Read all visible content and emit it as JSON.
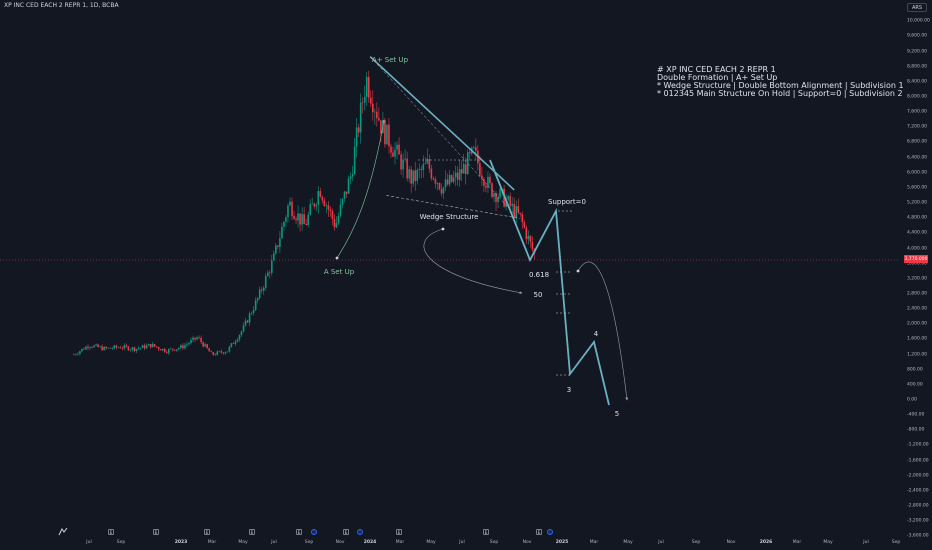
{
  "header": {
    "symbol_title": "XP INC CED EACH 2 REPR 1, 1D, BCBA",
    "currency": "ARS"
  },
  "price_axis": {
    "labels": [
      "10,000.00",
      "9,600.00",
      "9,200.00",
      "8,800.00",
      "8,400.00",
      "8,000.00",
      "7,600.00",
      "7,200.00",
      "6,800.00",
      "6,400.00",
      "6,000.00",
      "5,600.00",
      "5,200.00",
      "4,800.00",
      "4,400.00",
      "4,000.00",
      "3,600.00",
      "3,200.00",
      "2,800.00",
      "2,400.00",
      "2,000.00",
      "1,600.00",
      "1,200.00",
      "800.00",
      "400.00",
      "0.00",
      "-400.00",
      "-800.00",
      "-1,200.00",
      "-1,600.00",
      "-2,000.00",
      "-2,400.00",
      "-2,800.00",
      "-3,200.00",
      "-3,600.00"
    ],
    "current_price": "3,770.000",
    "current_price_color": "#f23645"
  },
  "time_axis": {
    "labels": [
      {
        "text": "Jul",
        "bold": false
      },
      {
        "text": "Sep",
        "bold": false
      },
      {
        "text": "2023",
        "bold": true
      },
      {
        "text": "Mar",
        "bold": false
      },
      {
        "text": "May",
        "bold": false
      },
      {
        "text": "Jul",
        "bold": false
      },
      {
        "text": "Sep",
        "bold": false
      },
      {
        "text": "Nov",
        "bold": false
      },
      {
        "text": "2024",
        "bold": true
      },
      {
        "text": "Mar",
        "bold": false
      },
      {
        "text": "May",
        "bold": false
      },
      {
        "text": "Jul",
        "bold": false
      },
      {
        "text": "Sep",
        "bold": false
      },
      {
        "text": "Nov",
        "bold": false
      },
      {
        "text": "2025",
        "bold": true
      },
      {
        "text": "Mar",
        "bold": false
      },
      {
        "text": "May",
        "bold": false
      },
      {
        "text": "Jul",
        "bold": false
      },
      {
        "text": "Sep",
        "bold": false
      },
      {
        "text": "Nov",
        "bold": false
      },
      {
        "text": "2026",
        "bold": true
      },
      {
        "text": "Mar",
        "bold": false
      },
      {
        "text": "May",
        "bold": false
      },
      {
        "text": "Jul",
        "bold": false
      },
      {
        "text": "Sep",
        "bold": false
      }
    ],
    "events": [
      {
        "type": "earnings",
        "label": "E"
      },
      {
        "type": "earnings",
        "label": "E"
      },
      {
        "type": "earnings",
        "label": "E"
      },
      {
        "type": "earnings",
        "label": "E"
      },
      {
        "type": "earnings",
        "label": "E"
      },
      {
        "type": "dividend",
        "label": "D"
      },
      {
        "type": "earnings",
        "label": "E"
      },
      {
        "type": "dividend",
        "label": "D"
      },
      {
        "type": "earnings",
        "label": "E"
      },
      {
        "type": "earnings",
        "label": "E"
      },
      {
        "type": "earnings",
        "label": "E"
      },
      {
        "type": "dividend",
        "label": "D"
      }
    ]
  },
  "annotations": {
    "note_lines": [
      "# XP INC CED EACH 2 REPR 1",
      "Double Formation | A+ Set Up",
      "* Wedge Structure | Double Bottom Alignment | Subdivision 1",
      "* 012345 Main Structure On Hold | Support=0 | Subdivision 2"
    ],
    "a_plus_setup": "A+ Set Up",
    "a_setup": "A Set Up",
    "wedge_structure": "Wedge Structure",
    "support": "Support=0",
    "fib_0618": "0.618",
    "fib_50": "50",
    "wave_3": "3",
    "wave_4": "4",
    "wave_5": "5"
  },
  "chart_data": {
    "type": "candlestick",
    "ylim": [
      -3600,
      10000
    ],
    "candle_colors": {
      "up": "#089981",
      "down": "#f23645"
    },
    "price_path": [
      [
        "2022-06-01",
        1200
      ],
      [
        "2022-07-01",
        1450
      ],
      [
        "2022-08-01",
        1350
      ],
      [
        "2022-09-01",
        1400
      ],
      [
        "2022-10-01",
        1350
      ],
      [
        "2022-11-01",
        1450
      ],
      [
        "2022-12-01",
        1300
      ],
      [
        "2023-01-01",
        1400
      ],
      [
        "2023-02-01",
        1650
      ],
      [
        "2023-03-01",
        1200
      ],
      [
        "2023-04-01",
        1300
      ],
      [
        "2023-05-01",
        1850
      ],
      [
        "2023-06-01",
        2700
      ],
      [
        "2023-07-01",
        3700
      ],
      [
        "2023-08-01",
        5200
      ],
      [
        "2023-09-01",
        4600
      ],
      [
        "2023-10-01",
        5600
      ],
      [
        "2023-11-01",
        4600
      ],
      [
        "2023-12-01",
        5900
      ],
      [
        "2024-01-01",
        8500
      ],
      [
        "2024-02-01",
        7200
      ],
      [
        "2024-03-01",
        6500
      ],
      [
        "2024-04-01",
        5800
      ],
      [
        "2024-05-01",
        6200
      ],
      [
        "2024-06-01",
        5600
      ],
      [
        "2024-07-01",
        5900
      ],
      [
        "2024-08-01",
        6500
      ],
      [
        "2024-09-01",
        5600
      ],
      [
        "2024-10-01",
        5300
      ],
      [
        "2024-11-01",
        4800
      ],
      [
        "2024-12-01",
        3770
      ]
    ],
    "projection_path": [
      [
        "2024-10-20",
        5700
      ],
      [
        "2024-11-25",
        3800
      ],
      [
        "2024-12-20",
        5250
      ],
      [
        "2025-01-01",
        600
      ],
      [
        "2025-02-10",
        1650
      ],
      [
        "2025-03-25",
        -300
      ]
    ],
    "wedge_upper": [
      [
        "2024-01-01",
        8800
      ],
      [
        "2024-10-20",
        5600
      ]
    ],
    "wedge_lower": [
      [
        "2024-01-01",
        5400
      ],
      [
        "2024-11-01",
        4900
      ]
    ],
    "fib_levels": [
      {
        "name": "0.618",
        "value": 3380
      },
      {
        "name": "50",
        "value": 2800
      }
    ]
  }
}
